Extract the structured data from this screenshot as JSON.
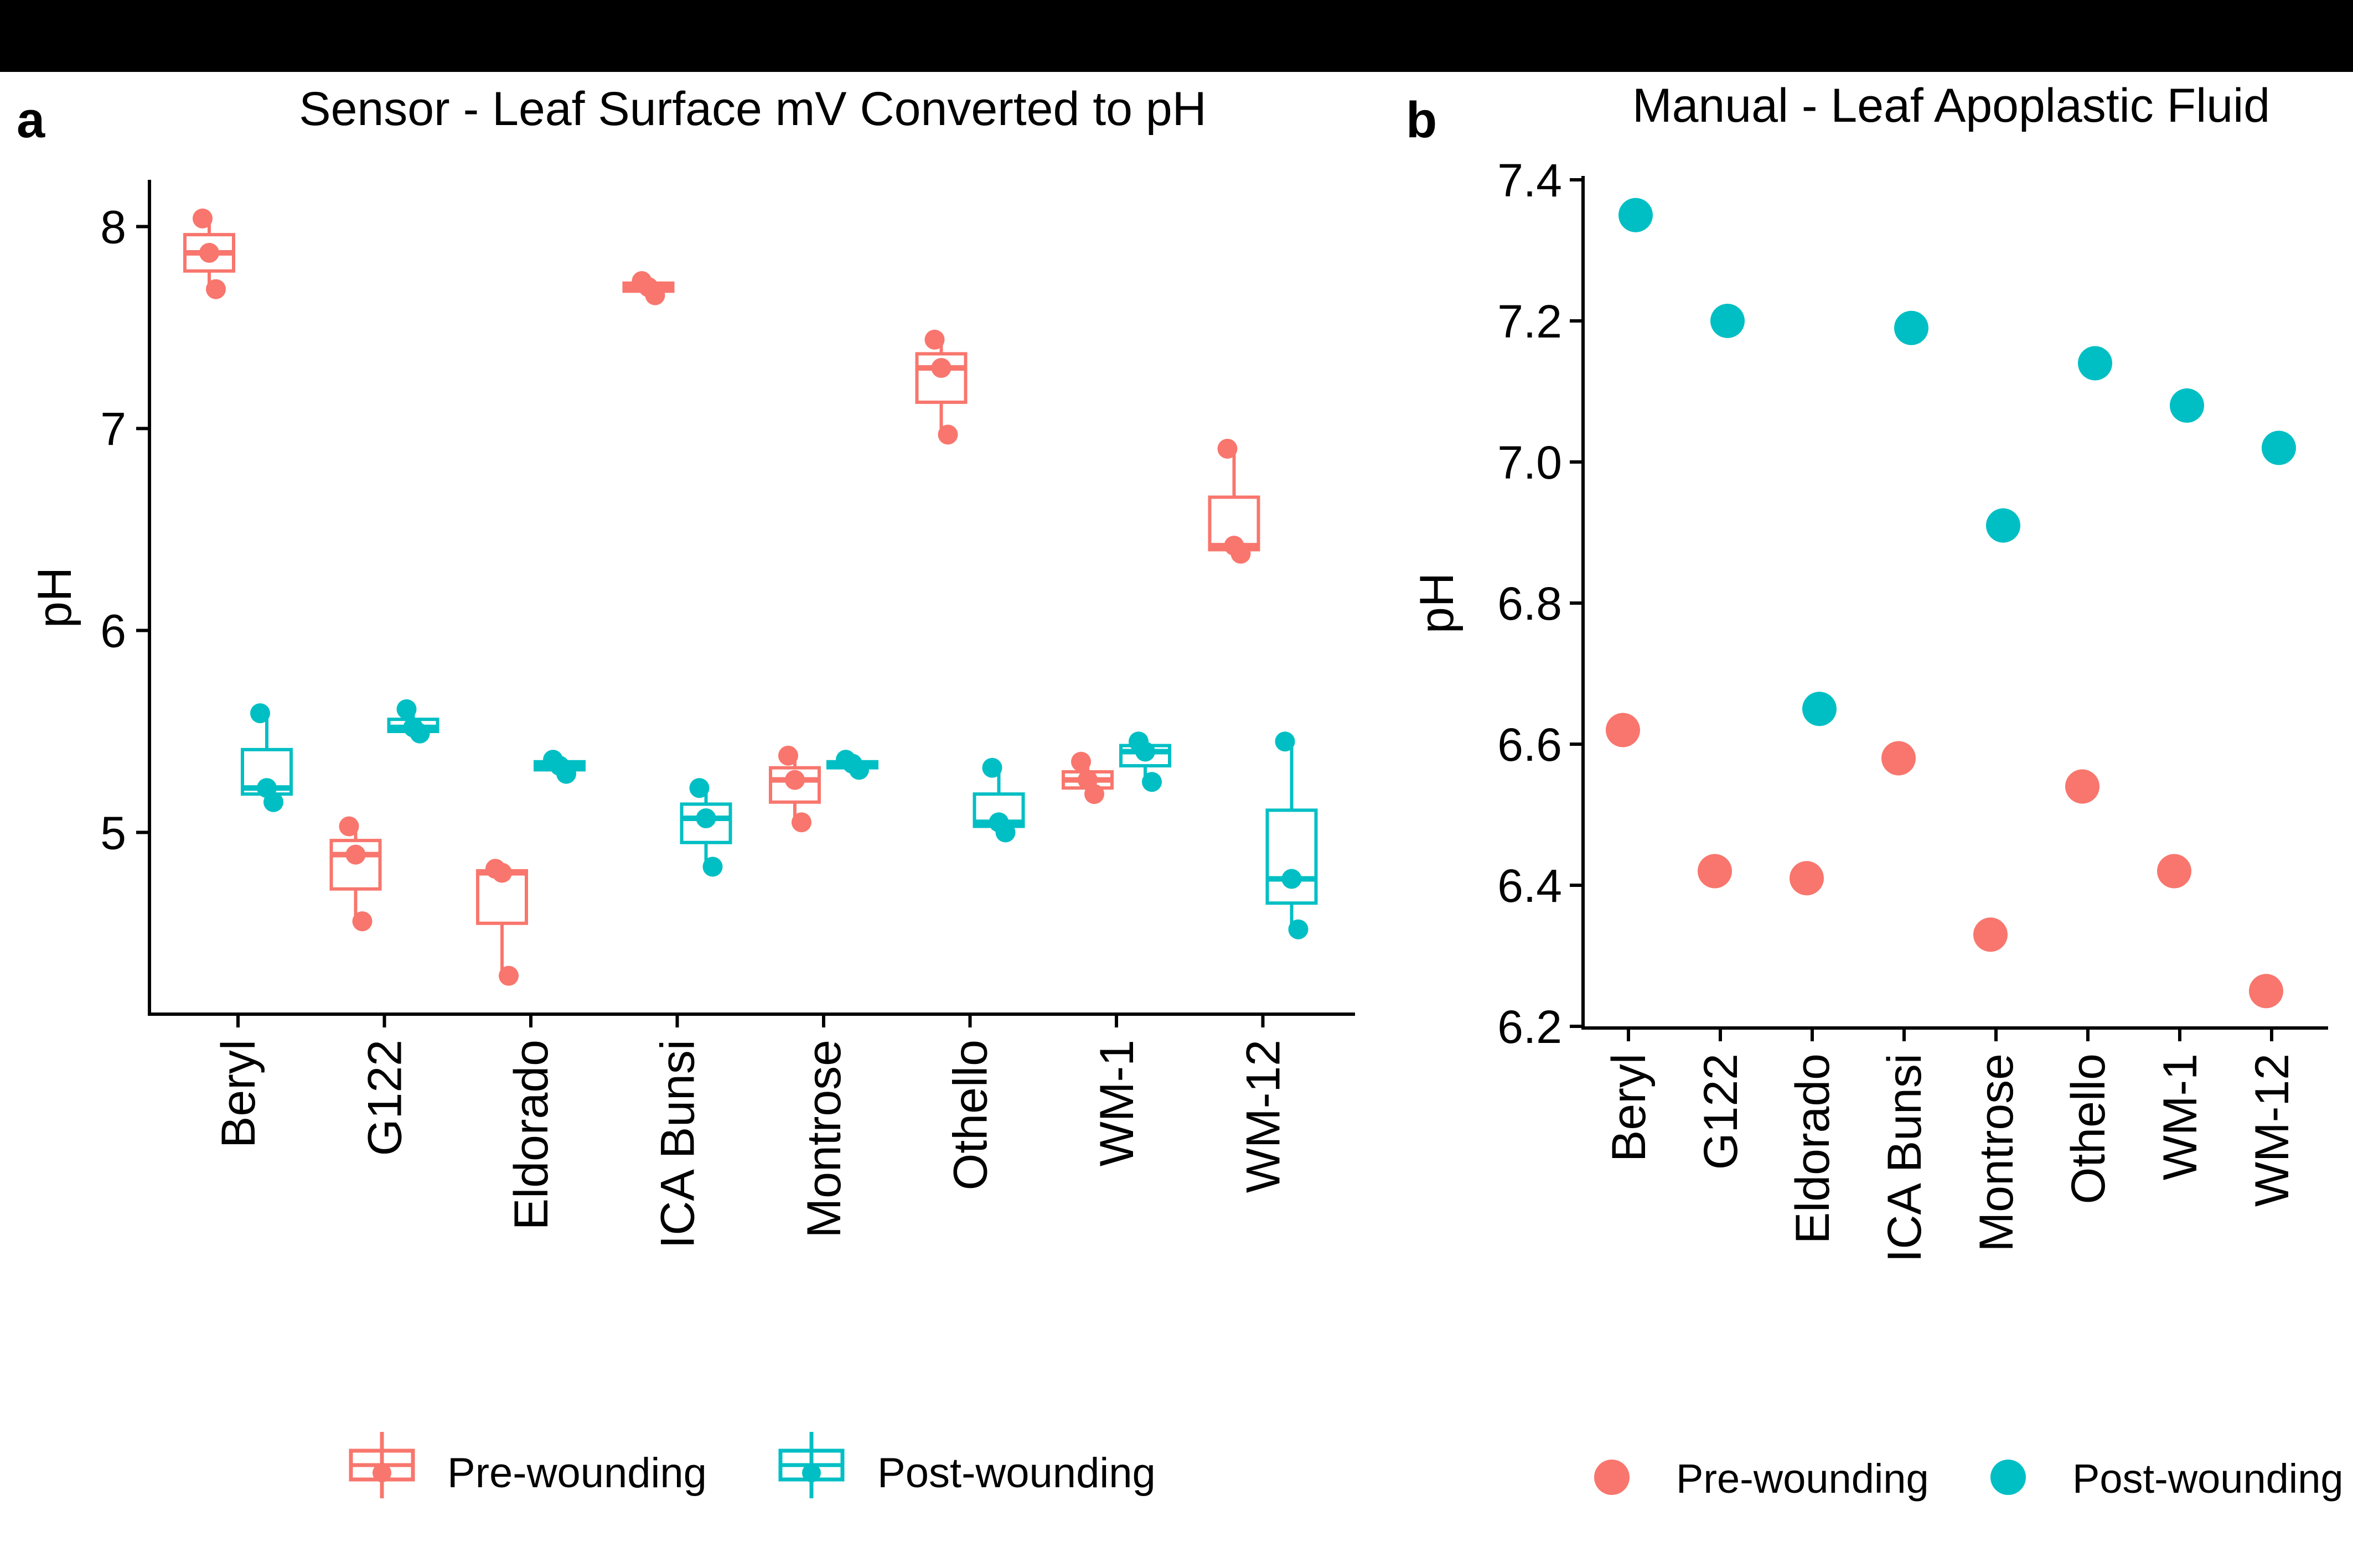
{
  "figure": {
    "panel_a_letter": "a",
    "panel_b_letter": "b"
  },
  "colors": {
    "pre": "#F8766D",
    "post": "#00BFC4",
    "axis": "#000000"
  },
  "chart_data": [
    {
      "panel": "a",
      "type": "box",
      "title": "Sensor - Leaf Surface mV Converted to pH",
      "xlabel": "",
      "ylabel": "pH",
      "ylim": [
        4.2,
        8.2
      ],
      "yticks": [
        5,
        6,
        7,
        8
      ],
      "categories": [
        "Beryl",
        "G122",
        "Eldorado",
        "ICA Bunsi",
        "Montrose",
        "Othello",
        "WM-1",
        "WM-12"
      ],
      "legend": {
        "position": "bottom",
        "entries": [
          "Pre-wounding",
          "Post-wounding"
        ]
      },
      "grid": false,
      "series": [
        {
          "name": "Pre-wounding",
          "boxes": [
            {
              "min": 7.69,
              "q1": 7.78,
              "median": 7.87,
              "q3": 7.96,
              "max": 8.04,
              "points": [
                8.04,
                7.87,
                7.69
              ]
            },
            {
              "min": 4.56,
              "q1": 4.72,
              "median": 4.89,
              "q3": 4.96,
              "max": 5.03,
              "points": [
                5.03,
                4.89,
                4.56
              ]
            },
            {
              "min": 4.29,
              "q1": 4.55,
              "median": 4.8,
              "q3": 4.81,
              "max": 4.82,
              "points": [
                4.82,
                4.8,
                4.29
              ]
            },
            {
              "min": 7.66,
              "q1": 7.68,
              "median": 7.7,
              "q3": 7.72,
              "max": 7.73,
              "points": [
                7.73,
                7.7,
                7.66
              ]
            },
            {
              "min": 5.05,
              "q1": 5.15,
              "median": 5.26,
              "q3": 5.32,
              "max": 5.38,
              "points": [
                5.38,
                5.26,
                5.05
              ]
            },
            {
              "min": 6.97,
              "q1": 7.13,
              "median": 7.3,
              "q3": 7.37,
              "max": 7.44,
              "points": [
                7.44,
                7.3,
                6.97
              ]
            },
            {
              "min": 5.19,
              "q1": 5.22,
              "median": 5.26,
              "q3": 5.3,
              "max": 5.35,
              "points": [
                5.35,
                5.26,
                5.19
              ]
            },
            {
              "min": 6.38,
              "q1": 6.4,
              "median": 6.42,
              "q3": 6.66,
              "max": 6.9,
              "points": [
                6.9,
                6.42,
                6.38
              ]
            }
          ]
        },
        {
          "name": "Post-wounding",
          "boxes": [
            {
              "min": 5.15,
              "q1": 5.19,
              "median": 5.22,
              "q3": 5.41,
              "max": 5.59,
              "points": [
                5.59,
                5.22,
                5.15
              ]
            },
            {
              "min": 5.49,
              "q1": 5.5,
              "median": 5.52,
              "q3": 5.56,
              "max": 5.61,
              "points": [
                5.61,
                5.52,
                5.49
              ]
            },
            {
              "min": 5.29,
              "q1": 5.31,
              "median": 5.33,
              "q3": 5.35,
              "max": 5.36,
              "points": [
                5.36,
                5.33,
                5.29
              ]
            },
            {
              "min": 4.83,
              "q1": 4.95,
              "median": 5.07,
              "q3": 5.14,
              "max": 5.22,
              "points": [
                5.22,
                5.07,
                4.83
              ]
            },
            {
              "min": 5.31,
              "q1": 5.32,
              "median": 5.34,
              "q3": 5.35,
              "max": 5.36,
              "points": [
                5.36,
                5.34,
                5.31
              ]
            },
            {
              "min": 5.0,
              "q1": 5.03,
              "median": 5.05,
              "q3": 5.19,
              "max": 5.32,
              "points": [
                5.32,
                5.05,
                5.0
              ]
            },
            {
              "min": 5.25,
              "q1": 5.33,
              "median": 5.4,
              "q3": 5.43,
              "max": 5.45,
              "points": [
                5.45,
                5.4,
                5.25
              ]
            },
            {
              "min": 4.52,
              "q1": 4.65,
              "median": 4.77,
              "q3": 5.11,
              "max": 5.45,
              "points": [
                5.45,
                4.77,
                4.52
              ]
            }
          ]
        }
      ]
    },
    {
      "panel": "b",
      "type": "scatter",
      "title": "Manual - Leaf Apoplastic Fluid",
      "xlabel": "",
      "ylabel": "pH",
      "ylim": [
        6.2,
        7.4
      ],
      "yticks": [
        6.2,
        6.4,
        6.6,
        6.8,
        7.0,
        7.2,
        7.4
      ],
      "ytick_labels": [
        "6.2",
        "6.4",
        "6.6",
        "6.8",
        "7.0",
        "7.2",
        "7.4"
      ],
      "categories": [
        "Beryl",
        "G122",
        "Eldorado",
        "ICA Bunsi",
        "Montrose",
        "Othello",
        "WM-1",
        "WM-12"
      ],
      "legend": {
        "position": "bottom",
        "entries": [
          "Pre-wounding",
          "Post-wounding"
        ]
      },
      "grid": false,
      "series": [
        {
          "name": "Pre-wounding",
          "values": [
            6.62,
            6.42,
            6.41,
            6.58,
            6.33,
            6.54,
            6.42,
            6.25
          ]
        },
        {
          "name": "Post-wounding",
          "values": [
            7.35,
            7.2,
            6.65,
            7.19,
            6.91,
            7.14,
            7.08,
            7.02
          ]
        }
      ]
    }
  ]
}
